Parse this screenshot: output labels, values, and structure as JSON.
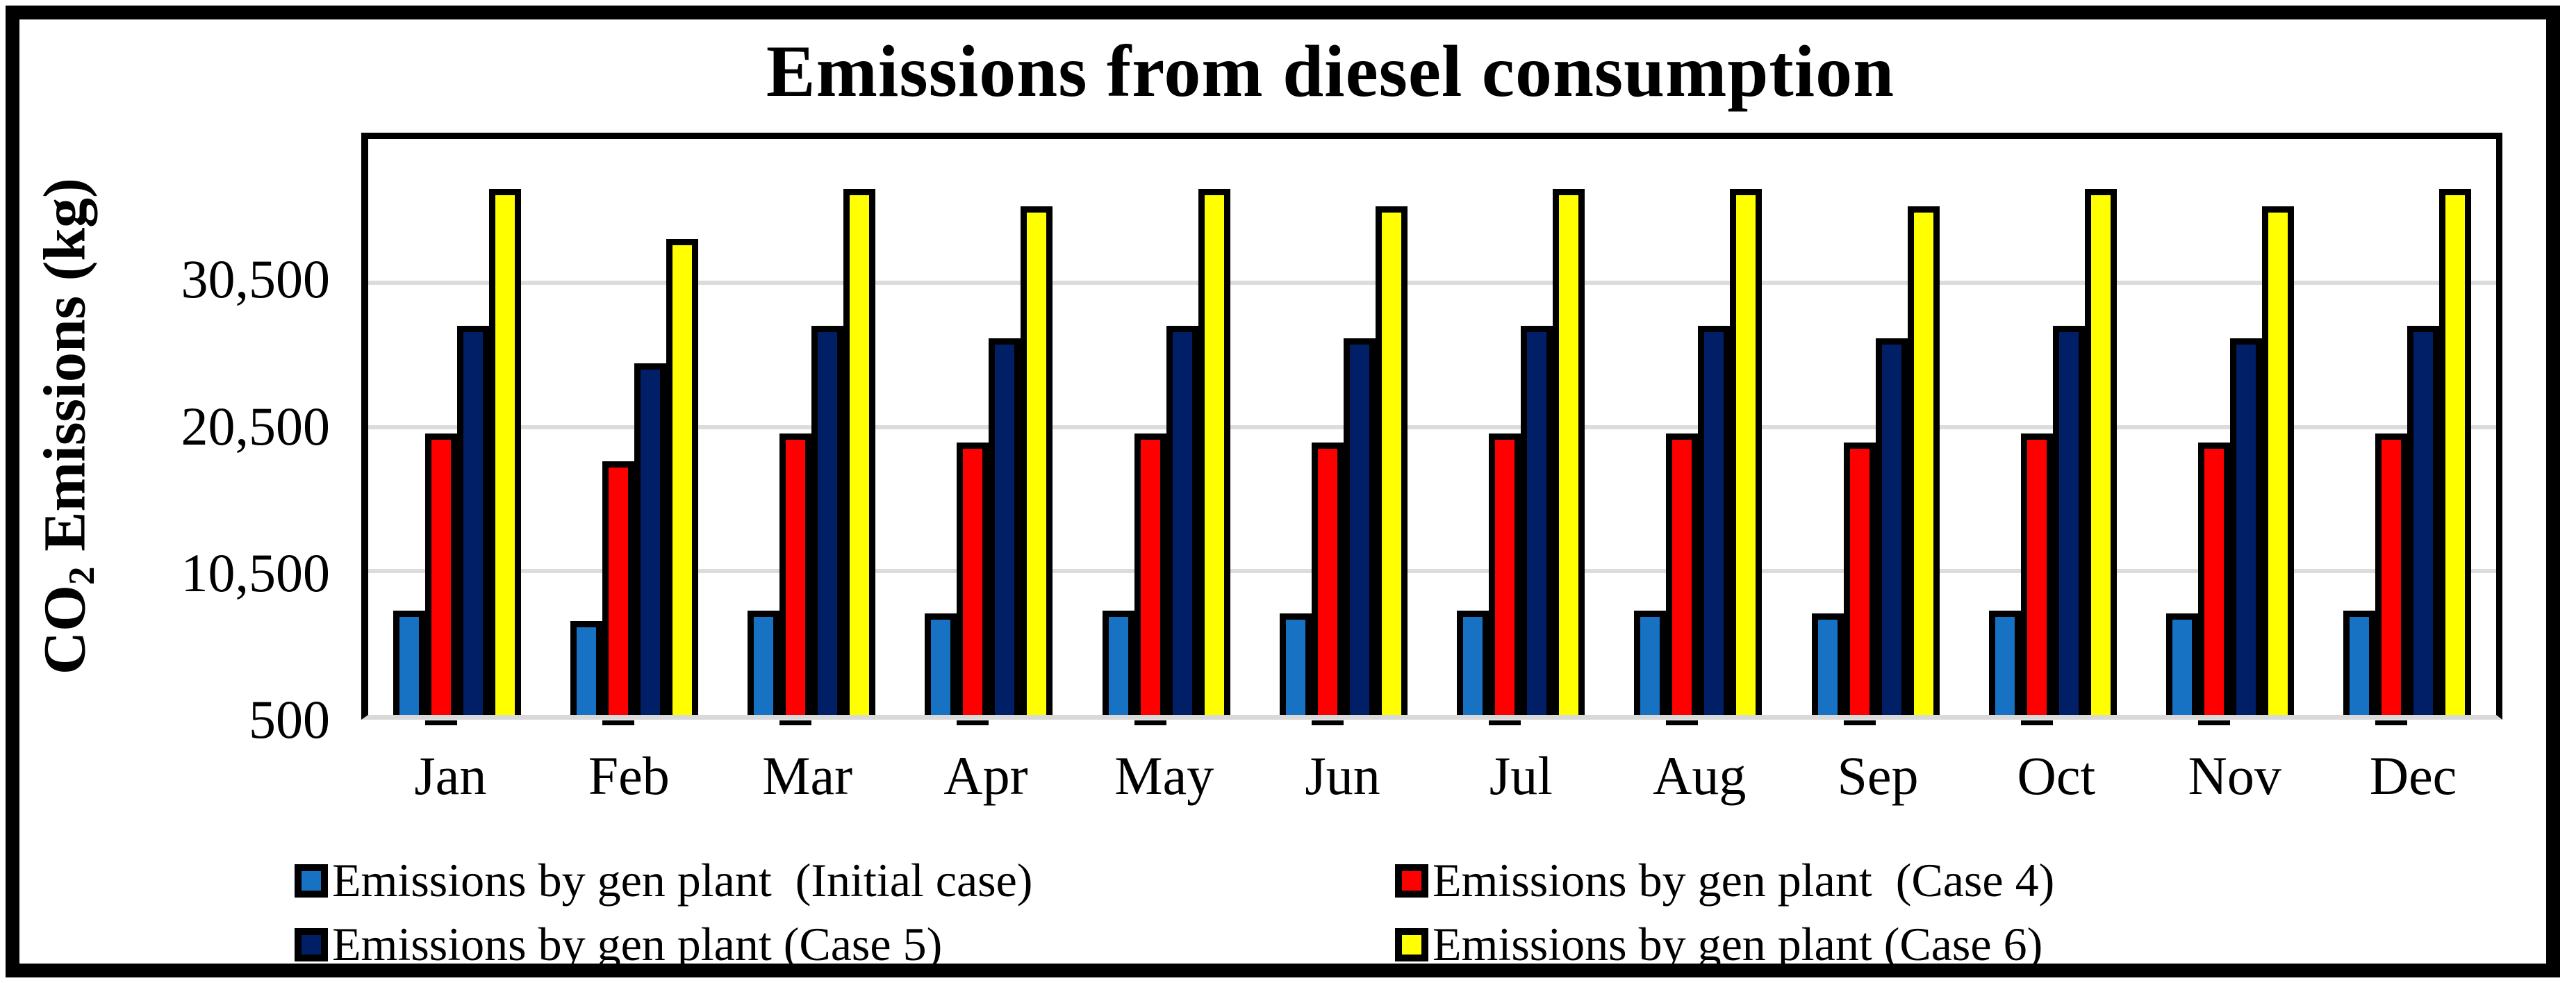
{
  "title": "Emissions from diesel consumption",
  "y_axis": {
    "label_prefix": "CO",
    "label_sub": "2",
    "label_suffix": " Emissions (kg)",
    "tick_labels": [
      "30,500",
      "20,500",
      "10,500",
      "500"
    ]
  },
  "x_axis": {
    "labels": [
      "Jan",
      "Feb",
      "Mar",
      "Apr",
      "May",
      "Jun",
      "Jul",
      "Aug",
      "Sep",
      "Oct",
      "Nov",
      "Dec"
    ]
  },
  "legend": {
    "items": [
      {
        "label": "Emissions by gen plant  (Initial case)",
        "color": "#1872C4"
      },
      {
        "label": "Emissions by gen plant  (Case 4)",
        "color": "#FE0000"
      },
      {
        "label": "Emissions by gen plant (Case 5)",
        "color": "#001F66"
      },
      {
        "label": "Emissions by gen plant (Case 6)",
        "color": "#FFFF00"
      }
    ]
  },
  "colors": {
    "bar_outline": "#000000",
    "gridline": "#DCDCDC",
    "baseline": "#D9D9D9"
  },
  "chart_data": {
    "type": "bar",
    "title": "Emissions from diesel consumption",
    "xlabel": "",
    "ylabel": "CO2 Emissions (kg)",
    "categories": [
      "Jan",
      "Feb",
      "Mar",
      "Apr",
      "May",
      "Jun",
      "Jul",
      "Aug",
      "Sep",
      "Oct",
      "Nov",
      "Dec"
    ],
    "series": [
      {
        "name": "Emissions by gen plant (Initial case)",
        "color": "#1872C4",
        "values": [
          7300,
          6600,
          7300,
          7100,
          7300,
          7100,
          7300,
          7300,
          7100,
          7300,
          7100,
          7300
        ]
      },
      {
        "name": "Emissions by gen plant (Case 4)",
        "color": "#FE0000",
        "values": [
          19600,
          17700,
          19600,
          19000,
          19600,
          19000,
          19600,
          19600,
          19000,
          19600,
          19000,
          19600
        ]
      },
      {
        "name": "Emissions by gen plant (Case 5)",
        "color": "#001F66",
        "values": [
          27100,
          24500,
          27100,
          26200,
          27100,
          26200,
          27100,
          27100,
          26200,
          27100,
          26200,
          27100
        ]
      },
      {
        "name": "Emissions by gen plant (Case 6)",
        "color": "#FFFF00",
        "values": [
          36600,
          33100,
          36600,
          35400,
          36600,
          35400,
          36600,
          36600,
          35400,
          36600,
          35400,
          36600
        ]
      }
    ],
    "ylim": [
      500,
      40500
    ],
    "yticks": [
      500,
      10500,
      20500,
      30500
    ],
    "grid": true,
    "legend_position": "bottom"
  }
}
